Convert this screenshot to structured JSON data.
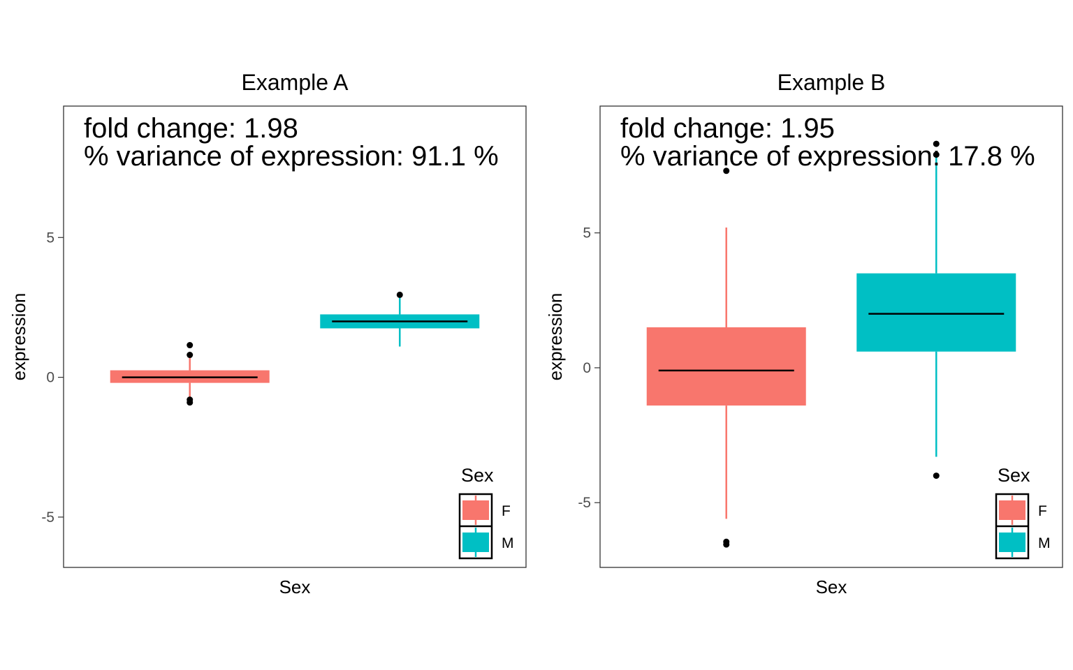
{
  "chart_data": [
    {
      "type": "boxplot",
      "title": "Example A",
      "xlabel": "Sex",
      "ylabel": "expression",
      "ylim": [
        -6.8,
        9.7
      ],
      "yticks": [
        -5,
        0,
        5
      ],
      "ytick_labels": [
        "-5",
        "0",
        "5"
      ],
      "grid": false,
      "annotations": [
        "fold change: 1.98",
        "% variance of expression: 91.1 %"
      ],
      "legend": {
        "title": "Sex",
        "position": "bottom-right",
        "entries": [
          "F",
          "M"
        ]
      },
      "categories": [
        "F",
        "M"
      ],
      "series": [
        {
          "name": "F",
          "color": "#F8766D",
          "min": -0.7,
          "q1": -0.2,
          "median": 0.0,
          "q3": 0.25,
          "max": 0.7,
          "outliers": [
            1.15,
            0.8,
            -0.8,
            -0.9
          ]
        },
        {
          "name": "M",
          "color": "#00BFC4",
          "min": 1.1,
          "q1": 1.75,
          "median": 2.0,
          "q3": 2.25,
          "max": 2.85,
          "outliers": [
            2.95
          ]
        }
      ]
    },
    {
      "type": "boxplot",
      "title": "Example B",
      "xlabel": "Sex",
      "ylabel": "expression",
      "ylim": [
        -7.4,
        9.7
      ],
      "yticks": [
        -5,
        0,
        5
      ],
      "ytick_labels": [
        "-5",
        "0",
        "5"
      ],
      "grid": false,
      "annotations": [
        "fold change: 1.95",
        "% variance of expression: 17.8 %"
      ],
      "legend": {
        "title": "Sex",
        "position": "bottom-right",
        "entries": [
          "F",
          "M"
        ]
      },
      "categories": [
        "F",
        "M"
      ],
      "series": [
        {
          "name": "F",
          "color": "#F8766D",
          "min": -5.6,
          "q1": -1.4,
          "median": -0.1,
          "q3": 1.5,
          "max": 5.2,
          "outliers": [
            7.3,
            -6.45,
            -6.55
          ]
        },
        {
          "name": "M",
          "color": "#00BFC4",
          "min": -3.3,
          "q1": 0.6,
          "median": 2.0,
          "q3": 3.5,
          "max": 7.8,
          "outliers": [
            8.3,
            7.9,
            -4.0
          ]
        }
      ]
    }
  ]
}
